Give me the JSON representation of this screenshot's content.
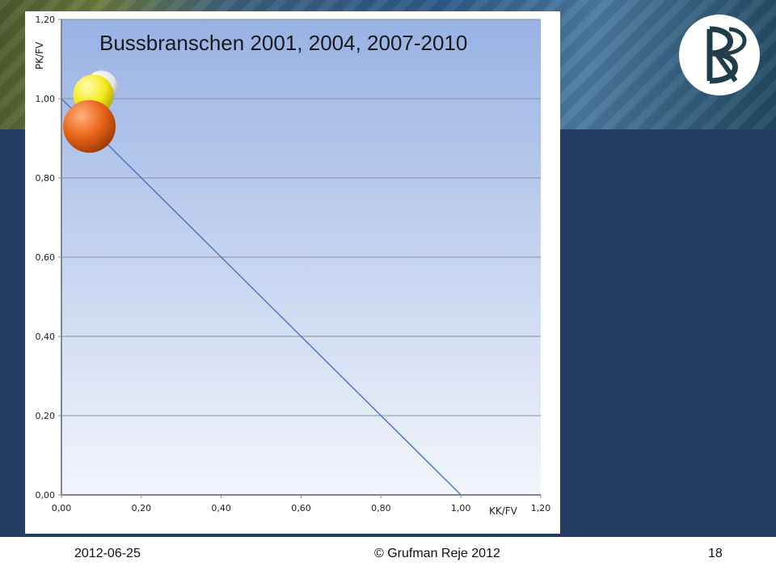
{
  "footer": {
    "date": "2012-06-25",
    "copyright": "© Grufman Reje 2012",
    "page_number": "18"
  },
  "logo": {
    "icon": "br-logo-icon"
  },
  "colors": {
    "background": "#243e63",
    "plot_top": "#98b2e4",
    "plot_bottom": "#f2f5fb",
    "line": "#4a7ac0",
    "bubble_white": "#f0f0f0",
    "bubble_yellow": "#f2ea1a",
    "bubble_orange": "#e86418"
  },
  "chart_data": {
    "type": "scatter",
    "title": "Bussbranschen 2001, 2004, 2007-2010",
    "xlabel": "KK/FV",
    "ylabel": "PK/FV",
    "xlim": [
      0,
      1.2
    ],
    "ylim": [
      0,
      1.2
    ],
    "x_ticks": [
      "0,00",
      "0,20",
      "0,40",
      "0,60",
      "0,80",
      "1,00",
      "1,20"
    ],
    "y_ticks": [
      "0,00",
      "0,20",
      "0,40",
      "0,60",
      "0,80",
      "1,00",
      "1,20"
    ],
    "grid": "horizontal",
    "reference_line": {
      "from": [
        0,
        1.0
      ],
      "to": [
        1.0,
        0
      ]
    },
    "points": [
      {
        "x": 0.1,
        "y": 1.03,
        "r": 0.8,
        "color": "#f0f0f0"
      },
      {
        "x": 0.08,
        "y": 1.01,
        "r": 1.0,
        "color": "#f2ea1a"
      },
      {
        "x": 0.07,
        "y": 0.93,
        "r": 1.3,
        "color": "#e86418"
      }
    ]
  }
}
